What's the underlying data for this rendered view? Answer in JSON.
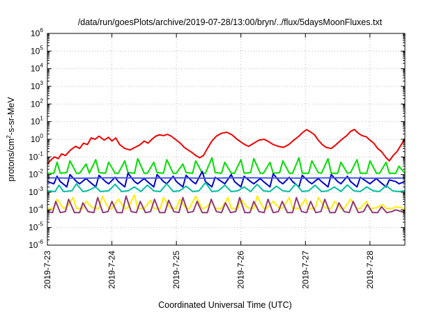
{
  "chart_data": {
    "type": "line",
    "title": "/data/run/goesPlots/archive/2019-07-28/13:00/bryn/../flux/5daysMoonFluxes.txt",
    "xlabel": "Coordinated Universal Time (UTC)",
    "ylabel_parts": [
      "protons/cm",
      "2",
      "-s-sr-MeV"
    ],
    "y_scale": "log",
    "ylim": [
      1e-06,
      1000000.0
    ],
    "y_ticks": [
      {
        "base": "10",
        "exp": "-6",
        "value": 1e-06
      },
      {
        "base": "10",
        "exp": "-5",
        "value": 1e-05
      },
      {
        "base": "10",
        "exp": "-4",
        "value": 0.0001
      },
      {
        "base": "10",
        "exp": "-3",
        "value": 0.001
      },
      {
        "base": "10",
        "exp": "-2",
        "value": 0.01
      },
      {
        "base": "10",
        "exp": "-1",
        "value": 0.1
      },
      {
        "base": "10",
        "exp": "0",
        "value": 1
      },
      {
        "base": "10",
        "exp": "1",
        "value": 10
      },
      {
        "base": "10",
        "exp": "2",
        "value": 100
      },
      {
        "base": "10",
        "exp": "3",
        "value": 1000
      },
      {
        "base": "10",
        "exp": "4",
        "value": 10000
      },
      {
        "base": "10",
        "exp": "5",
        "value": 100000
      },
      {
        "base": "10",
        "exp": "6",
        "value": 1000000
      }
    ],
    "x_ticks": [
      "2019-7-23",
      "2019-7-24",
      "2019-7-25",
      "2019-7-26",
      "2019-7-27",
      "2019-7-28"
    ],
    "xlim": [
      "2019-07-23T00:00",
      "2019-07-28T13:00"
    ],
    "grid": true,
    "series": [
      {
        "color": "#ee0000",
        "x_days": [
          0,
          0.06,
          0.11,
          0.17,
          0.22,
          0.28,
          0.36,
          0.44,
          0.5,
          0.56,
          0.62,
          0.68,
          0.74,
          0.8,
          0.88,
          0.95,
          1.0,
          1.06,
          1.12,
          1.2,
          1.28,
          1.36,
          1.44,
          1.5,
          1.56,
          1.62,
          1.68,
          1.74,
          1.8,
          1.86,
          1.92,
          2.0,
          2.06,
          2.12,
          2.18,
          2.24,
          2.3,
          2.36,
          2.42,
          2.48,
          2.55,
          2.62,
          2.7,
          2.78,
          2.86,
          2.94,
          3.0,
          3.06,
          3.12,
          3.2,
          3.28,
          3.36,
          3.44,
          3.5,
          3.58,
          3.66,
          3.74,
          3.82,
          3.9,
          3.96,
          4.02,
          4.08,
          4.14,
          4.2,
          4.26,
          4.32,
          4.4,
          4.46,
          4.52,
          4.58,
          4.64,
          4.7,
          4.76,
          4.82,
          4.88,
          4.94,
          5.0,
          5.06,
          5.12,
          5.18,
          5.24,
          5.3,
          5.36,
          5.42,
          5.5,
          5.54
        ],
        "values": [
          0.04,
          0.07,
          0.1,
          0.08,
          0.15,
          0.12,
          0.25,
          0.4,
          0.3,
          0.6,
          0.5,
          1.2,
          1.0,
          1.5,
          0.9,
          1.3,
          0.8,
          1.2,
          0.5,
          0.3,
          0.25,
          0.35,
          0.5,
          0.8,
          0.6,
          1.0,
          1.5,
          1.8,
          1.6,
          1.9,
          1.5,
          0.9,
          0.6,
          0.35,
          0.25,
          0.18,
          0.12,
          0.09,
          0.12,
          0.3,
          0.8,
          1.5,
          2.2,
          2.5,
          1.8,
          1.0,
          0.7,
          0.5,
          0.4,
          0.6,
          0.9,
          1.0,
          0.7,
          0.5,
          0.4,
          0.35,
          0.5,
          0.9,
          1.5,
          2.5,
          3.5,
          2.6,
          1.8,
          0.9,
          0.5,
          0.35,
          0.3,
          0.45,
          0.7,
          1.1,
          1.6,
          2.8,
          3.6,
          2.2,
          1.6,
          1.4,
          0.9,
          0.6,
          0.3,
          0.2,
          0.1,
          0.06,
          0.12,
          0.2,
          0.6,
          1.1
        ]
      },
      {
        "color": "#00dd00",
        "x_days": [
          0,
          0.1,
          0.15,
          0.2,
          0.3,
          0.35,
          0.45,
          0.5,
          0.6,
          0.65,
          0.75,
          0.8,
          0.9,
          0.95,
          1.05,
          1.1,
          1.2,
          1.25,
          1.35,
          1.4,
          1.5,
          1.55,
          1.65,
          1.7,
          1.8,
          1.85,
          1.95,
          2.0,
          2.1,
          2.15,
          2.25,
          2.3,
          2.4,
          2.45,
          2.55,
          2.6,
          2.7,
          2.75,
          2.85,
          2.9,
          3.0,
          3.05,
          3.15,
          3.2,
          3.3,
          3.35,
          3.45,
          3.5,
          3.6,
          3.65,
          3.75,
          3.8,
          3.9,
          3.95,
          4.05,
          4.1,
          4.2,
          4.25,
          4.35,
          4.4,
          4.5,
          4.55,
          4.65,
          4.7,
          4.8,
          4.85,
          4.95,
          5.0,
          5.1,
          5.15,
          5.25,
          5.3,
          5.4,
          5.45,
          5.54
        ],
        "values": [
          0.012,
          0.012,
          0.05,
          0.012,
          0.013,
          0.06,
          0.012,
          0.012,
          0.04,
          0.012,
          0.07,
          0.013,
          0.012,
          0.05,
          0.012,
          0.012,
          0.06,
          0.013,
          0.012,
          0.08,
          0.012,
          0.012,
          0.05,
          0.013,
          0.012,
          0.07,
          0.012,
          0.012,
          0.04,
          0.013,
          0.012,
          0.06,
          0.012,
          0.012,
          0.09,
          0.013,
          0.012,
          0.05,
          0.012,
          0.012,
          0.07,
          0.012,
          0.013,
          0.08,
          0.012,
          0.012,
          0.05,
          0.012,
          0.013,
          0.06,
          0.012,
          0.012,
          0.09,
          0.012,
          0.012,
          0.06,
          0.013,
          0.012,
          0.08,
          0.012,
          0.012,
          0.05,
          0.012,
          0.013,
          0.07,
          0.012,
          0.012,
          0.06,
          0.012,
          0.012,
          0.05,
          0.012,
          0.012,
          0.03,
          0.012
        ]
      },
      {
        "color": "#0000cc",
        "x_days": [
          0,
          0.1,
          0.15,
          0.2,
          0.3,
          0.35,
          0.45,
          0.5,
          0.6,
          0.65,
          0.75,
          0.8,
          0.9,
          0.95,
          1.05,
          1.1,
          1.2,
          1.25,
          1.35,
          1.4,
          1.5,
          1.55,
          1.65,
          1.7,
          1.8,
          1.85,
          1.95,
          2.0,
          2.1,
          2.15,
          2.25,
          2.3,
          2.4,
          2.45,
          2.55,
          2.6,
          2.7,
          2.75,
          2.85,
          2.9,
          3.0,
          3.05,
          3.15,
          3.2,
          3.3,
          3.35,
          3.45,
          3.5,
          3.6,
          3.65,
          3.75,
          3.8,
          3.9,
          3.95,
          4.05,
          4.1,
          4.2,
          4.25,
          4.35,
          4.4,
          4.5,
          4.55,
          4.65,
          4.7,
          4.8,
          4.85,
          4.95,
          5.0,
          5.1,
          5.15,
          5.25,
          5.3,
          5.4,
          5.45,
          5.54
        ],
        "values": [
          0.004,
          0.003,
          0.008,
          0.004,
          0.002,
          0.01,
          0.004,
          0.003,
          0.006,
          0.004,
          0.002,
          0.009,
          0.004,
          0.003,
          0.007,
          0.004,
          0.002,
          0.012,
          0.004,
          0.003,
          0.006,
          0.004,
          0.002,
          0.01,
          0.004,
          0.003,
          0.008,
          0.004,
          0.002,
          0.009,
          0.004,
          0.003,
          0.015,
          0.004,
          0.002,
          0.007,
          0.004,
          0.003,
          0.01,
          0.004,
          0.002,
          0.008,
          0.004,
          0.003,
          0.006,
          0.004,
          0.002,
          0.011,
          0.004,
          0.003,
          0.007,
          0.004,
          0.002,
          0.009,
          0.004,
          0.003,
          0.006,
          0.004,
          0.002,
          0.01,
          0.004,
          0.003,
          0.008,
          0.004,
          0.002,
          0.007,
          0.004,
          0.003,
          0.006,
          0.004,
          0.002,
          0.005,
          0.004,
          0.003,
          0.004
        ]
      },
      {
        "color": "#4455ee",
        "x_days": [
          0,
          0.5,
          1.0,
          1.5,
          2.0,
          2.5,
          3.0,
          3.5,
          4.0,
          4.5,
          5.0,
          5.54
        ],
        "values": [
          0.0065,
          0.0062,
          0.0066,
          0.0063,
          0.0065,
          0.0062,
          0.0066,
          0.0064,
          0.0063,
          0.0066,
          0.0062,
          0.0064
        ]
      },
      {
        "color": "#00c0a0",
        "x_days": [
          0,
          0.12,
          0.18,
          0.25,
          0.38,
          0.45,
          0.55,
          0.62,
          0.75,
          0.82,
          0.95,
          1.05,
          1.15,
          1.25,
          1.35,
          1.45,
          1.55,
          1.65,
          1.75,
          1.85,
          1.95,
          2.05,
          2.15,
          2.25,
          2.35,
          2.45,
          2.55,
          2.65,
          2.75,
          2.85,
          2.95,
          3.05,
          3.15,
          3.25,
          3.35,
          3.45,
          3.55,
          3.65,
          3.75,
          3.85,
          3.95,
          4.05,
          4.15,
          4.25,
          4.35,
          4.45,
          4.55,
          4.65,
          4.75,
          4.85,
          4.95,
          5.05,
          5.15,
          5.25,
          5.35,
          5.45,
          5.54
        ],
        "values": [
          0.0012,
          0.0011,
          0.0025,
          0.0011,
          0.0012,
          0.003,
          0.0011,
          0.0012,
          0.002,
          0.0011,
          0.0012,
          0.0028,
          0.0011,
          0.0012,
          0.002,
          0.0011,
          0.0025,
          0.0012,
          0.0011,
          0.003,
          0.0011,
          0.0012,
          0.0022,
          0.0011,
          0.0012,
          0.0035,
          0.0011,
          0.0012,
          0.0025,
          0.0011,
          0.0012,
          0.002,
          0.0011,
          0.0028,
          0.0012,
          0.0011,
          0.0022,
          0.0012,
          0.0011,
          0.003,
          0.0011,
          0.0012,
          0.0025,
          0.0011,
          0.0012,
          0.002,
          0.0011,
          0.0026,
          0.0012,
          0.0011,
          0.002,
          0.0012,
          0.0011,
          0.0024,
          0.0012,
          0.0011,
          0.0012
        ]
      },
      {
        "color": "#ffee00",
        "x_days": [
          0,
          0.1,
          0.15,
          0.25,
          0.3,
          0.4,
          0.45,
          0.55,
          0.6,
          0.7,
          0.8,
          0.85,
          0.95,
          1.0,
          1.1,
          1.2,
          1.25,
          1.35,
          1.4,
          1.5,
          1.6,
          1.65,
          1.75,
          1.8,
          1.9,
          2.0,
          2.05,
          2.15,
          2.2,
          2.3,
          2.4,
          2.45,
          2.55,
          2.6,
          2.7,
          2.8,
          2.85,
          2.95,
          3.0,
          3.1,
          3.2,
          3.25,
          3.35,
          3.4,
          3.5,
          3.6,
          3.65,
          3.75,
          3.8,
          3.9,
          4.0,
          4.05,
          4.15,
          4.2,
          4.3,
          4.4,
          4.45,
          4.55,
          4.6,
          4.7,
          4.8,
          4.85,
          4.95,
          5.0,
          5.1,
          5.2,
          5.25,
          5.35,
          5.4,
          5.54
        ],
        "values": [
          0.00012,
          0.00012,
          0.0004,
          0.00012,
          0.00014,
          0.0005,
          0.00012,
          0.00012,
          0.0003,
          0.00013,
          0.00012,
          0.0006,
          0.00012,
          0.00012,
          0.0004,
          0.00012,
          0.00013,
          0.0007,
          0.00012,
          0.00012,
          0.00035,
          0.00012,
          0.00012,
          0.0005,
          0.00013,
          0.00012,
          0.0004,
          0.00012,
          0.00012,
          0.0006,
          0.00012,
          0.00013,
          0.0003,
          0.00012,
          0.00012,
          0.0005,
          0.00012,
          0.00012,
          0.0004,
          0.00013,
          0.00012,
          0.0006,
          0.00012,
          0.00012,
          0.0003,
          0.00012,
          0.00013,
          0.0005,
          0.00012,
          0.00012,
          0.0004,
          0.00012,
          0.00012,
          0.0005,
          0.00013,
          0.00012,
          0.0003,
          0.00012,
          0.00012,
          0.0004,
          0.00012,
          0.00012,
          0.0003,
          0.00012,
          0.00013,
          0.0002,
          0.00012,
          0.00012,
          0.00015,
          0.00012
        ]
      },
      {
        "color": "#903878",
        "x_days": [
          0,
          0.08,
          0.13,
          0.2,
          0.28,
          0.33,
          0.42,
          0.5,
          0.55,
          0.63,
          0.72,
          0.78,
          0.86,
          0.94,
          1.0,
          1.08,
          1.16,
          1.22,
          1.3,
          1.38,
          1.44,
          1.52,
          1.6,
          1.66,
          1.74,
          1.82,
          1.88,
          1.96,
          2.04,
          2.1,
          2.18,
          2.26,
          2.32,
          2.4,
          2.48,
          2.54,
          2.62,
          2.7,
          2.76,
          2.84,
          2.92,
          2.98,
          3.06,
          3.14,
          3.2,
          3.28,
          3.36,
          3.42,
          3.5,
          3.58,
          3.64,
          3.72,
          3.8,
          3.86,
          3.94,
          4.02,
          4.08,
          4.16,
          4.24,
          4.3,
          4.38,
          4.46,
          4.52,
          4.6,
          4.68,
          4.74,
          4.82,
          4.9,
          4.96,
          5.04,
          5.12,
          5.18,
          5.26,
          5.34,
          5.4,
          5.54
        ],
        "values": [
          8e-05,
          7e-05,
          0.0003,
          7e-05,
          8e-05,
          0.0004,
          7e-05,
          7e-05,
          0.00025,
          8e-05,
          7e-05,
          0.0005,
          7e-05,
          8e-05,
          0.0003,
          7e-05,
          7e-05,
          0.0006,
          8e-05,
          7e-05,
          0.0003,
          7e-05,
          8e-05,
          0.0004,
          7e-05,
          7e-05,
          0.00035,
          8e-05,
          7e-05,
          0.0005,
          7e-05,
          8e-05,
          0.0003,
          7e-05,
          7e-05,
          0.0004,
          8e-05,
          7e-05,
          0.00025,
          7e-05,
          8e-05,
          0.0005,
          7e-05,
          7e-05,
          0.0003,
          8e-05,
          7e-05,
          0.0004,
          7e-05,
          8e-05,
          0.0003,
          7e-05,
          7e-05,
          0.0005,
          8e-05,
          7e-05,
          0.0003,
          7e-05,
          8e-05,
          0.0004,
          7e-05,
          7e-05,
          0.00025,
          8e-05,
          7e-05,
          0.0003,
          7e-05,
          8e-05,
          0.0002,
          7e-05,
          7e-05,
          0.00015,
          7e-05,
          8e-05,
          0.0001,
          7e-05
        ]
      }
    ]
  }
}
